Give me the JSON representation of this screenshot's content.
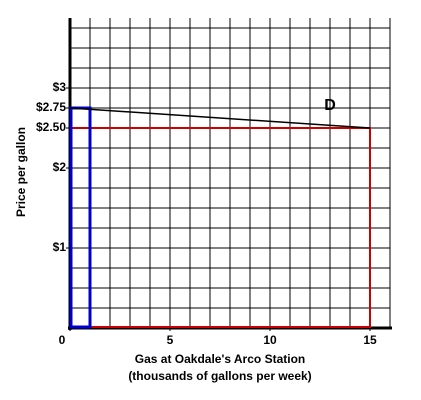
{
  "chart_data": {
    "type": "line",
    "xlabel": [
      "Gas at Oakdale's Arco Station",
      "(thousands of gallons per week)"
    ],
    "ylabel": "Price per gallon",
    "xlim": [
      0,
      16
    ],
    "ylim": [
      0,
      3.875
    ],
    "xticks": [
      0,
      5,
      10,
      15
    ],
    "yticks": [
      {
        "value": 3,
        "label": "$3"
      },
      {
        "value": 2.75,
        "label": "$2.75"
      },
      {
        "value": 2.5,
        "label": "$2.50"
      },
      {
        "value": 2,
        "label": "$2"
      },
      {
        "value": 1,
        "label": "$1"
      }
    ],
    "grid": true,
    "series": [
      {
        "name": "D",
        "color": "#000000",
        "x": [
          0,
          15
        ],
        "values": [
          2.75,
          2.5
        ]
      }
    ],
    "rectangles": [
      {
        "color": "#cc0000",
        "quantity": 15,
        "price": 2.5
      },
      {
        "color": "#0000cc",
        "quantity": 1,
        "price": 2.75
      }
    ]
  }
}
